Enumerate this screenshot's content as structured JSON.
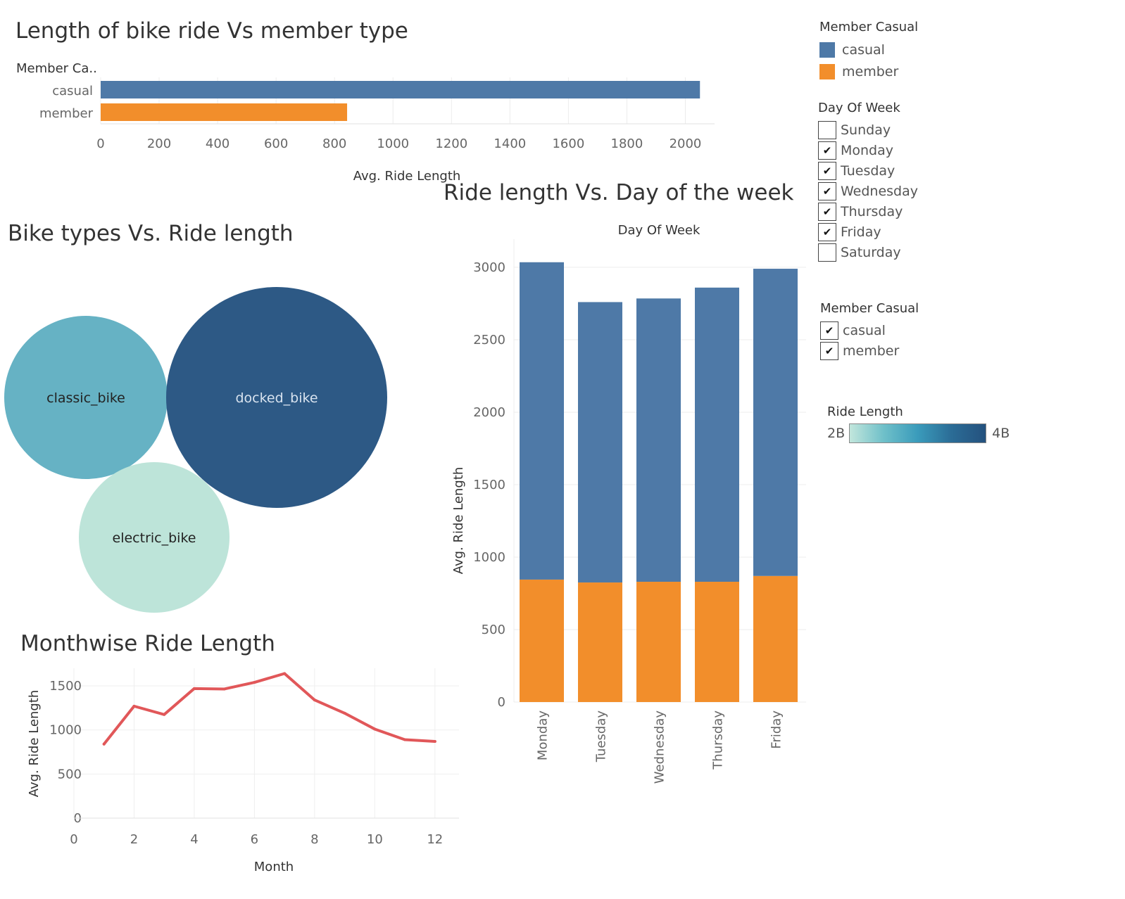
{
  "chart_data": [
    {
      "id": "member-type",
      "type": "bar",
      "orientation": "horizontal",
      "title": "Length of bike ride Vs member type",
      "row_header": "Member Ca..",
      "categories": [
        "casual",
        "member"
      ],
      "values": [
        2050,
        843
      ],
      "colors": [
        "#4e79a7",
        "#f28e2b"
      ],
      "xlabel": "Avg. Ride Length",
      "xlim": [
        0,
        2100
      ],
      "xticks": [
        0,
        200,
        400,
        600,
        800,
        1000,
        1200,
        1400,
        1600,
        1800,
        2000
      ]
    },
    {
      "id": "bike-types",
      "type": "bubble",
      "title": "Bike types Vs. Ride length",
      "items": [
        {
          "label": "classic_bike",
          "color": "#66b2c4"
        },
        {
          "label": "docked_bike",
          "color": "#2d5985"
        },
        {
          "label": "electric_bike",
          "color": "#bde4d9"
        }
      ]
    },
    {
      "id": "day-of-week",
      "type": "bar",
      "stacked": true,
      "title": "Ride length Vs. Day of the week",
      "column_header": "Day Of Week",
      "ylabel": "Avg. Ride Length",
      "ylim": [
        0,
        3000
      ],
      "yticks": [
        0,
        500,
        1000,
        1500,
        2000,
        2500,
        3000
      ],
      "categories": [
        "Monday",
        "Tuesday",
        "Wednesday",
        "Thursday",
        "Friday"
      ],
      "series": [
        {
          "name": "member",
          "color": "#f28e2b",
          "values": [
            845,
            825,
            830,
            830,
            870
          ]
        },
        {
          "name": "casual",
          "color": "#4e79a7",
          "values": [
            2190,
            1935,
            1955,
            2030,
            2120
          ]
        }
      ]
    },
    {
      "id": "monthwise",
      "type": "line",
      "title": "Monthwise Ride Length",
      "xlabel": "Month",
      "ylabel": "Avg. Ride Length",
      "xlim": [
        0,
        12.8
      ],
      "ylim": [
        0,
        1700
      ],
      "xticks": [
        0,
        2,
        4,
        6,
        8,
        10,
        12
      ],
      "yticks": [
        0,
        500,
        1000,
        1500
      ],
      "color": "#e15759",
      "x": [
        1,
        2,
        3,
        4,
        5,
        6,
        7,
        8,
        9,
        10,
        11,
        12
      ],
      "y": [
        840,
        1270,
        1175,
        1470,
        1465,
        1540,
        1640,
        1340,
        1190,
        1010,
        890,
        870
      ]
    }
  ],
  "legends": {
    "member_color": {
      "title": "Member Casual",
      "items": [
        {
          "label": "casual",
          "color": "#4e79a7"
        },
        {
          "label": "member",
          "color": "#f28e2b"
        }
      ]
    },
    "day_filter": {
      "title": "Day Of Week",
      "items": [
        {
          "label": "Sunday",
          "checked": false
        },
        {
          "label": "Monday",
          "checked": true
        },
        {
          "label": "Tuesday",
          "checked": true
        },
        {
          "label": "Wednesday",
          "checked": true
        },
        {
          "label": "Thursday",
          "checked": true
        },
        {
          "label": "Friday",
          "checked": true
        },
        {
          "label": "Saturday",
          "checked": false
        }
      ]
    },
    "member_filter": {
      "title": "Member Casual",
      "items": [
        {
          "label": "casual",
          "checked": true
        },
        {
          "label": "member",
          "checked": true
        }
      ]
    },
    "ride_length_scale": {
      "title": "Ride Length",
      "min_label": "2B",
      "max_label": "4B"
    }
  }
}
